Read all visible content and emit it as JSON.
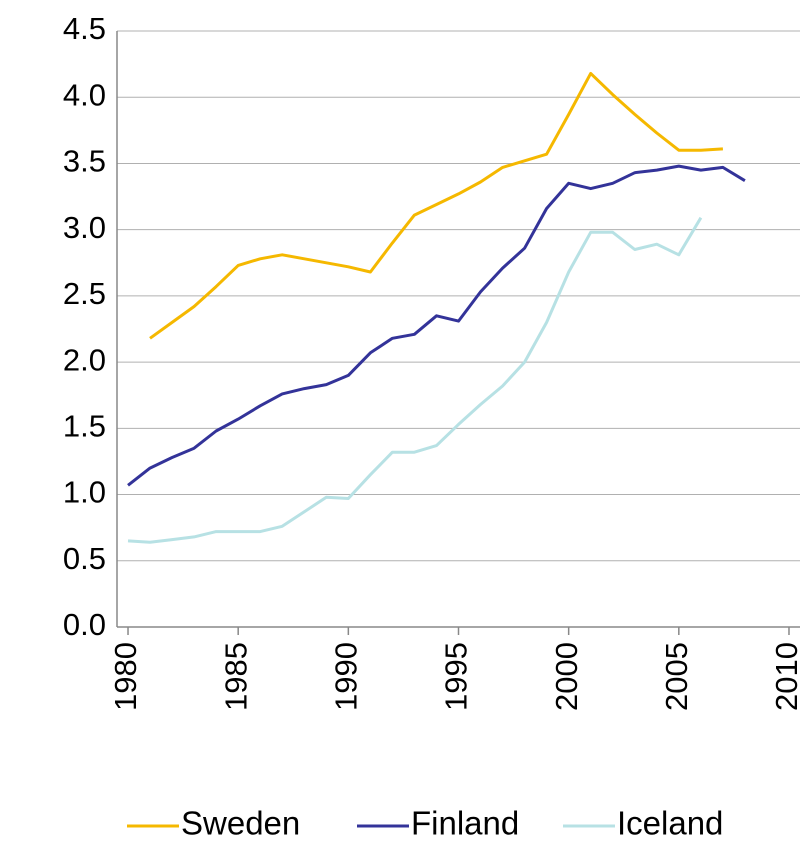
{
  "chart_data": {
    "type": "line",
    "x": [
      1980,
      1981,
      1982,
      1983,
      1984,
      1985,
      1986,
      1987,
      1988,
      1989,
      1990,
      1991,
      1992,
      1993,
      1994,
      1995,
      1996,
      1997,
      1998,
      1999,
      2000,
      2001,
      2002,
      2003,
      2004,
      2005,
      2006,
      2007,
      2008
    ],
    "series": [
      {
        "name": "Sweden",
        "color": "#f5b800",
        "values": [
          null,
          2.18,
          2.3,
          2.42,
          2.57,
          2.73,
          2.78,
          2.81,
          2.78,
          2.75,
          2.72,
          2.68,
          2.9,
          3.11,
          3.19,
          3.27,
          3.36,
          3.47,
          3.52,
          3.57,
          3.87,
          4.18,
          4.02,
          3.87,
          3.73,
          3.6,
          3.6,
          3.61,
          null
        ]
      },
      {
        "name": "Finland",
        "color": "#333399",
        "values": [
          1.07,
          1.2,
          1.28,
          1.35,
          1.48,
          1.57,
          1.67,
          1.76,
          1.8,
          1.83,
          1.9,
          2.07,
          2.18,
          2.21,
          2.35,
          2.31,
          2.53,
          2.71,
          2.86,
          3.16,
          3.35,
          3.31,
          3.35,
          3.43,
          3.45,
          3.48,
          3.45,
          3.47,
          3.37
        ]
      },
      {
        "name": "Iceland",
        "color": "#b7e1e4",
        "values": [
          0.65,
          0.64,
          0.66,
          0.68,
          0.72,
          0.72,
          0.72,
          0.76,
          0.87,
          0.98,
          0.97,
          1.15,
          1.32,
          1.32,
          1.37,
          1.53,
          1.68,
          1.82,
          2.0,
          2.3,
          2.68,
          2.98,
          2.98,
          2.85,
          2.89,
          2.81,
          3.09,
          null,
          null
        ]
      }
    ],
    "xlim": [
      1979.5,
      2010.5
    ],
    "xticks": [
      1980,
      1985,
      1990,
      1995,
      2000,
      2005,
      2010
    ],
    "ylim": [
      0,
      4.5
    ],
    "yticks": [
      {
        "value": 0,
        "label": "0.0"
      },
      0.5,
      {
        "value": 1,
        "label": "1.0"
      },
      1.5,
      {
        "value": 2,
        "label": "2.0"
      },
      2.5,
      {
        "value": 3,
        "label": "3.0"
      },
      3.5,
      {
        "value": 4,
        "label": "4.0"
      },
      4.5
    ],
    "grid": true,
    "legend": "bottom"
  }
}
